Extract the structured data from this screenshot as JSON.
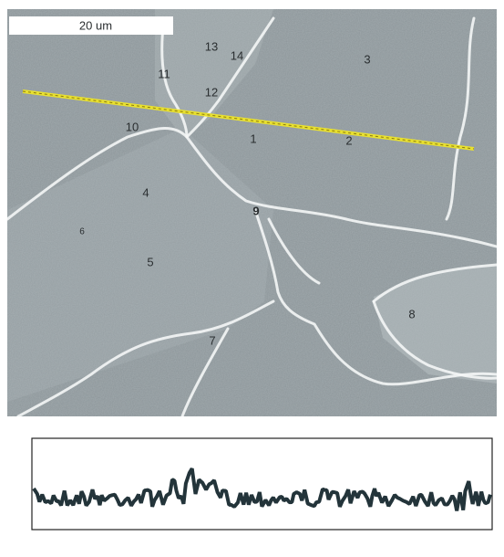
{
  "scale_bar": {
    "label": "20 um"
  },
  "labels": [
    "1",
    "2",
    "3",
    "4",
    "5",
    "6",
    "7",
    "8",
    "9",
    "10",
    "11",
    "12",
    "13",
    "14"
  ]
}
